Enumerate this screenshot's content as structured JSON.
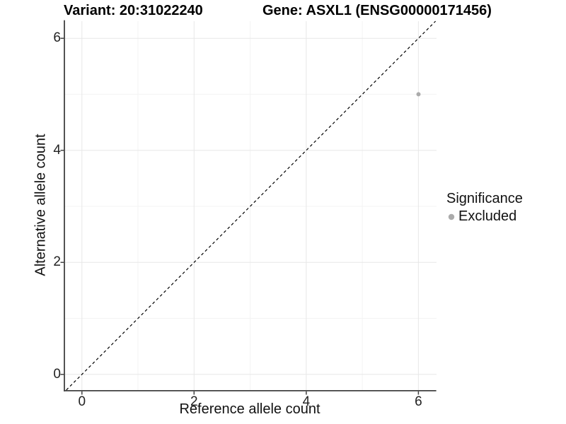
{
  "chart_data": {
    "type": "scatter",
    "titles": {
      "left": "Variant: 20:31022240",
      "right": "Gene: ASXL1 (ENSG00000171456)"
    },
    "xlabel": "Reference allele count",
    "ylabel": "Alternative allele count",
    "x_ticks": [
      "0",
      "2",
      "4",
      "6"
    ],
    "y_ticks": [
      "0",
      "2",
      "4",
      "6"
    ],
    "xlim": [
      -0.3,
      6.33
    ],
    "ylim": [
      -0.3,
      6.33
    ],
    "grid": {
      "major": true,
      "minor": true,
      "major_color": "#e7e7e7",
      "minor_color": "#f3f3f3"
    },
    "reference_line": {
      "equation": "y = x",
      "style": "dashed",
      "color": "#000000"
    },
    "legend": {
      "title": "Significance",
      "position": "right",
      "entries": [
        {
          "label": "Excluded",
          "color": "#ababab"
        }
      ]
    },
    "series": [
      {
        "name": "Excluded",
        "color": "#ababab",
        "points": [
          [
            6,
            5
          ]
        ]
      }
    ]
  }
}
